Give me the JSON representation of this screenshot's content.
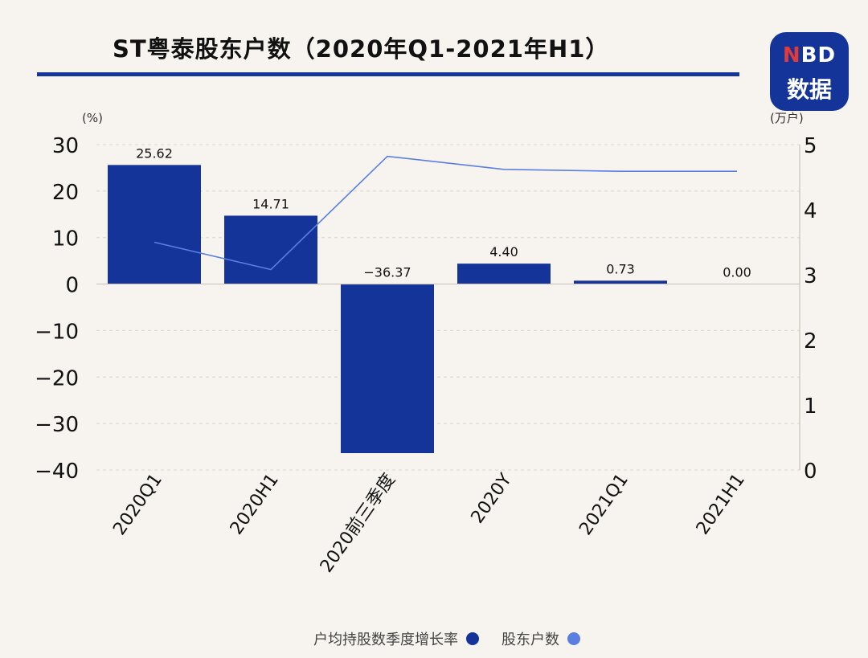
{
  "header": {
    "title": "ST粤泰股东户数（2020年Q1-2021年H1）",
    "logo_line1_a": "N",
    "logo_line1_b": "BD",
    "logo_line2": "数据"
  },
  "colors": {
    "bar": "#14349a",
    "line": "#5b7fe0",
    "accent": "#14349a",
    "logo_red": "#e03a3a"
  },
  "chart_data": {
    "type": "bar",
    "categories": [
      "2020Q1",
      "2020H1",
      "2020前三季度",
      "2020Y",
      "2021Q1",
      "2021H1"
    ],
    "series": [
      {
        "name": "户均持股数季度增长率",
        "type": "bar",
        "axis": "left",
        "values": [
          25.62,
          14.71,
          -36.37,
          4.4,
          0.73,
          0.0
        ],
        "labels": [
          "25.62",
          "14.71",
          "−36.37",
          "4.40",
          "0.73",
          "0.00"
        ]
      },
      {
        "name": "股东户数",
        "type": "line",
        "axis": "right",
        "values": [
          3.5,
          3.08,
          4.82,
          4.62,
          4.59,
          4.59
        ]
      }
    ],
    "left_axis": {
      "unit": "(%)",
      "ylim": [
        -40,
        30
      ],
      "ticks": [
        30,
        20,
        10,
        0,
        -10,
        -20,
        -30,
        -40
      ],
      "tick_labels": [
        "30",
        "20",
        "10",
        "0",
        "−10",
        "−20",
        "−30",
        "−40"
      ]
    },
    "right_axis": {
      "unit": "(万户)",
      "ylim": [
        0,
        5
      ],
      "ticks": [
        5,
        4,
        3,
        2,
        1,
        0
      ],
      "tick_labels": [
        "5",
        "4",
        "3",
        "2",
        "1",
        "0"
      ]
    },
    "grid": "dashed horizontal",
    "legend_position": "bottom"
  }
}
